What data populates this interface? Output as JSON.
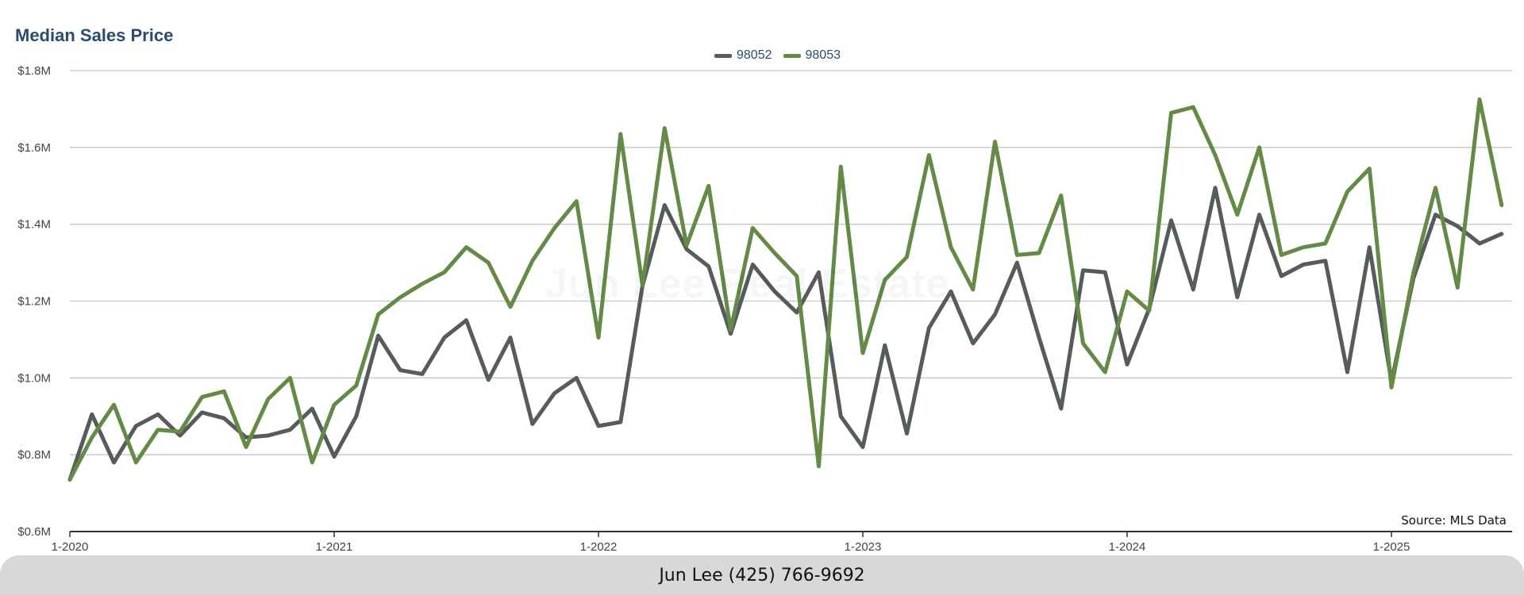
{
  "chart_data": {
    "type": "line",
    "title": "Median Sales Price",
    "ylim": [
      600000,
      1800000
    ],
    "y_ticks": [
      {
        "value": 600000,
        "label": "$0.6M"
      },
      {
        "value": 800000,
        "label": "$0.8M"
      },
      {
        "value": 1000000,
        "label": "$1.0M"
      },
      {
        "value": 1200000,
        "label": "$1.2M"
      },
      {
        "value": 1400000,
        "label": "$1.4M"
      },
      {
        "value": 1600000,
        "label": "$1.6M"
      },
      {
        "value": 1800000,
        "label": "$1.8M"
      }
    ],
    "x_ticks": [
      "1-2020",
      "1-2021",
      "1-2022",
      "1-2023",
      "1-2024",
      "1-2025"
    ],
    "x": [
      "2020-01",
      "2020-02",
      "2020-03",
      "2020-04",
      "2020-05",
      "2020-06",
      "2020-07",
      "2020-08",
      "2020-09",
      "2020-10",
      "2020-11",
      "2020-12",
      "2021-01",
      "2021-02",
      "2021-03",
      "2021-04",
      "2021-05",
      "2021-06",
      "2021-07",
      "2021-08",
      "2021-09",
      "2021-10",
      "2021-11",
      "2021-12",
      "2022-01",
      "2022-02",
      "2022-03",
      "2022-04",
      "2022-05",
      "2022-06",
      "2022-07",
      "2022-08",
      "2022-09",
      "2022-10",
      "2022-11",
      "2022-12",
      "2023-01",
      "2023-02",
      "2023-03",
      "2023-04",
      "2023-05",
      "2023-06",
      "2023-07",
      "2023-08",
      "2023-09",
      "2023-10",
      "2023-11",
      "2023-12",
      "2024-01",
      "2024-02",
      "2024-03",
      "2024-04",
      "2024-05",
      "2024-06",
      "2024-07",
      "2024-08",
      "2024-09",
      "2024-10",
      "2024-11",
      "2024-12",
      "2025-01",
      "2025-02",
      "2025-03",
      "2025-04",
      "2025-05",
      "2025-06"
    ],
    "grid": true,
    "legend_position": "top-center",
    "series": [
      {
        "name": "98052",
        "color": "#565c5c",
        "values": [
          735000,
          905000,
          780000,
          875000,
          905000,
          850000,
          910000,
          895000,
          845000,
          850000,
          865000,
          920000,
          795000,
          900000,
          1110000,
          1020000,
          1010000,
          1105000,
          1150000,
          995000,
          1105000,
          880000,
          960000,
          1000000,
          875000,
          885000,
          1240000,
          1450000,
          1335000,
          1290000,
          1115000,
          1295000,
          1225000,
          1170000,
          1275000,
          900000,
          820000,
          1085000,
          855000,
          1130000,
          1225000,
          1090000,
          1165000,
          1300000,
          1105000,
          920000,
          1280000,
          1275000,
          1035000,
          1180000,
          1410000,
          1230000,
          1495000,
          1210000,
          1425000,
          1265000,
          1295000,
          1305000,
          1015000,
          1340000,
          990000,
          1260000,
          1425000,
          1395000,
          1350000,
          1375000
        ]
      },
      {
        "name": "98053",
        "color": "#648a45",
        "values": [
          735000,
          845000,
          930000,
          780000,
          865000,
          860000,
          950000,
          965000,
          820000,
          945000,
          1000000,
          780000,
          930000,
          980000,
          1165000,
          1210000,
          1245000,
          1275000,
          1340000,
          1300000,
          1185000,
          1305000,
          1390000,
          1460000,
          1105000,
          1635000,
          1240000,
          1650000,
          1345000,
          1500000,
          1125000,
          1390000,
          1325000,
          1265000,
          770000,
          1550000,
          1065000,
          1255000,
          1315000,
          1580000,
          1340000,
          1230000,
          1615000,
          1320000,
          1325000,
          1475000,
          1090000,
          1015000,
          1225000,
          1175000,
          1690000,
          1705000,
          1580000,
          1425000,
          1600000,
          1320000,
          1340000,
          1350000,
          1485000,
          1545000,
          975000,
          1275000,
          1495000,
          1235000,
          1725000,
          1450000
        ]
      }
    ]
  },
  "watermark": "Jun Lee Real Estate",
  "source": "Source: MLS Data",
  "footer": {
    "contact": "Jun Lee (425) 766-9692"
  }
}
